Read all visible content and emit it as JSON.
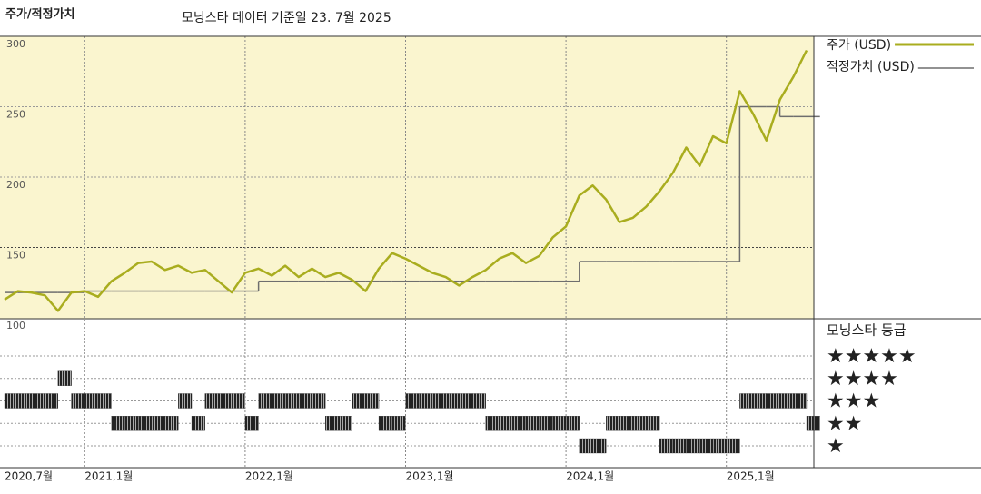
{
  "chart_data": [
    {
      "type": "line",
      "title": "주가/적정가치",
      "subtitle": "모닝스타 데이터 기준일 23. 7월 2025",
      "x": [
        "2020-07",
        "2020-08",
        "2020-09",
        "2020-10",
        "2020-11",
        "2020-12",
        "2021-01",
        "2021-02",
        "2021-03",
        "2021-04",
        "2021-05",
        "2021-06",
        "2021-07",
        "2021-08",
        "2021-09",
        "2021-10",
        "2021-11",
        "2021-12",
        "2022-01",
        "2022-02",
        "2022-03",
        "2022-04",
        "2022-05",
        "2022-06",
        "2022-07",
        "2022-08",
        "2022-09",
        "2022-10",
        "2022-11",
        "2022-12",
        "2023-01",
        "2023-02",
        "2023-03",
        "2023-04",
        "2023-05",
        "2023-06",
        "2023-07",
        "2023-08",
        "2023-09",
        "2023-10",
        "2023-11",
        "2023-12",
        "2024-01",
        "2024-02",
        "2024-03",
        "2024-04",
        "2024-05",
        "2024-06",
        "2024-07",
        "2024-08",
        "2024-09",
        "2024-10",
        "2024-11",
        "2024-12",
        "2025-01",
        "2025-02",
        "2025-03",
        "2025-04",
        "2025-05",
        "2025-06",
        "2025-07"
      ],
      "series": [
        {
          "name": "주가 (USD)",
          "color": "#a9ad1f",
          "values": [
            113,
            119,
            118,
            116,
            105,
            118,
            119,
            115,
            126,
            132,
            139,
            140,
            134,
            137,
            132,
            134,
            126,
            118,
            132,
            135,
            130,
            137,
            129,
            135,
            129,
            132,
            127,
            119,
            135,
            146,
            142,
            137,
            132,
            129,
            123,
            129,
            134,
            142,
            146,
            139,
            144,
            157,
            165,
            187,
            194,
            184,
            168,
            171,
            179,
            190,
            203,
            221,
            208,
            229,
            224,
            261,
            245,
            226,
            255,
            271,
            290
          ]
        },
        {
          "name": "적정가치 (USD)",
          "color": "#6e6e6e",
          "values": [
            118,
            118,
            118,
            118,
            118,
            118,
            119,
            119,
            119,
            119,
            119,
            119,
            119,
            119,
            119,
            119,
            119,
            119,
            119,
            126,
            126,
            126,
            126,
            126,
            126,
            126,
            126,
            126,
            126,
            126,
            126,
            126,
            126,
            126,
            126,
            126,
            126,
            126,
            126,
            126,
            126,
            126,
            126,
            140,
            140,
            140,
            140,
            140,
            140,
            140,
            140,
            140,
            140,
            140,
            140,
            250,
            250,
            250,
            243,
            243,
            243
          ]
        }
      ],
      "ylim": [
        100,
        300
      ],
      "yticks": [
        100,
        150,
        200,
        250,
        300
      ],
      "xticks": [
        {
          "value": "2020-07",
          "label": "2020,7월"
        },
        {
          "value": "2021-01",
          "label": "2021,1월"
        },
        {
          "value": "2022-01",
          "label": "2022,1월"
        },
        {
          "value": "2023-01",
          "label": "2023,1월"
        },
        {
          "value": "2024-01",
          "label": "2024,1월"
        },
        {
          "value": "2025-01",
          "label": "2025,1월"
        }
      ],
      "background": "#faf5cf",
      "grid": true
    },
    {
      "type": "rating",
      "title": "모닝스타 등급",
      "color": "#222222",
      "levels": [
        {
          "value": 1,
          "label": "★"
        },
        {
          "value": 2,
          "label": "★★"
        },
        {
          "value": 3,
          "label": "★★★"
        },
        {
          "value": 4,
          "label": "★★★★"
        },
        {
          "value": 5,
          "label": "★★★★★"
        }
      ],
      "values": [
        3,
        3,
        3,
        3,
        4,
        3,
        3,
        3,
        2,
        2,
        2,
        2,
        2,
        3,
        2,
        3,
        3,
        3,
        2,
        3,
        3,
        3,
        3,
        3,
        2,
        2,
        3,
        3,
        2,
        2,
        3,
        3,
        3,
        3,
        3,
        3,
        2,
        2,
        2,
        2,
        2,
        2,
        2,
        1,
        1,
        2,
        2,
        2,
        2,
        1,
        1,
        1,
        1,
        1,
        1,
        3,
        3,
        3,
        3,
        3,
        2
      ]
    }
  ]
}
